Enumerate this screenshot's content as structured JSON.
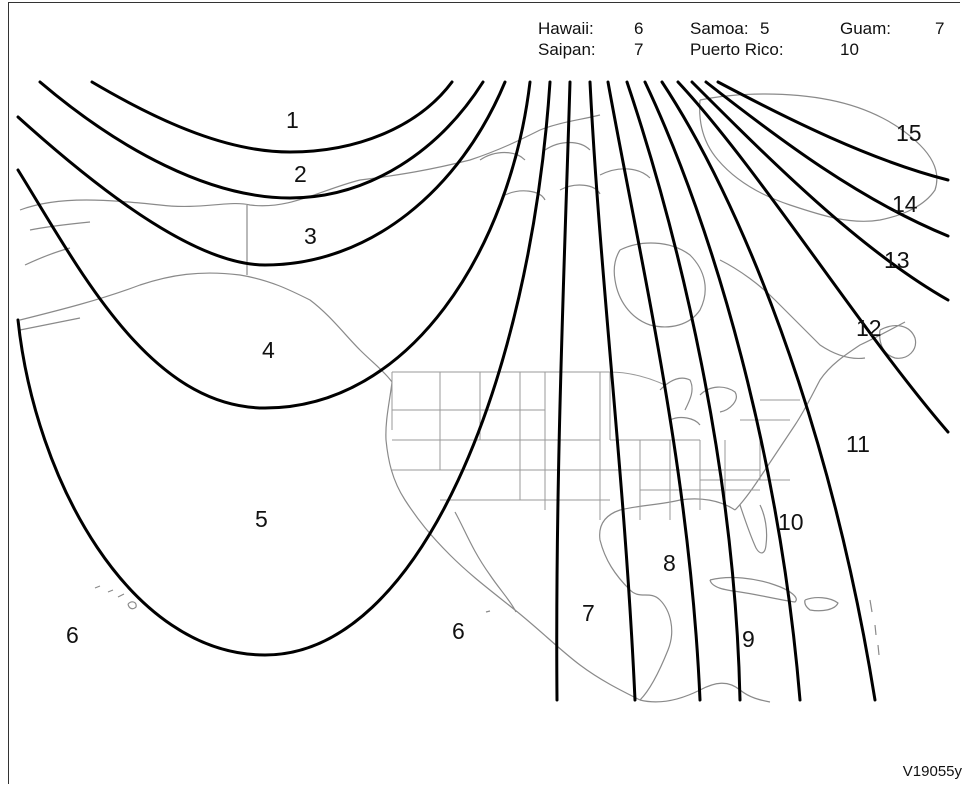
{
  "legend": [
    {
      "name": "Hawaii:",
      "value": "6"
    },
    {
      "name": "Samoa:",
      "value": "5"
    },
    {
      "name": "Guam:",
      "value": "7"
    },
    {
      "name": "Saipan:",
      "value": "7"
    },
    {
      "name": "Puerto Rico:",
      "value": "10"
    }
  ],
  "zones": [
    "1",
    "2",
    "3",
    "4",
    "5",
    "6",
    "6",
    "7",
    "8",
    "9",
    "10",
    "11",
    "12",
    "13",
    "14",
    "15"
  ],
  "figure_id": "V19055y"
}
